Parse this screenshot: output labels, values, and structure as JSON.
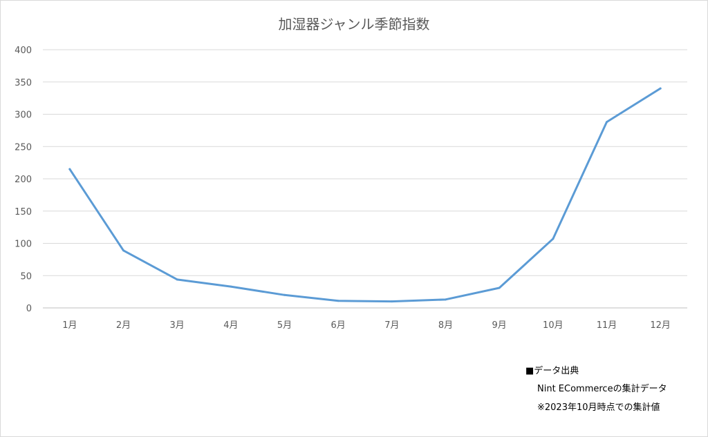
{
  "chart_data": {
    "type": "line",
    "title": "加湿器ジャンル季節指数",
    "xlabel": "",
    "ylabel": "",
    "categories": [
      "1月",
      "2月",
      "3月",
      "4月",
      "5月",
      "6月",
      "7月",
      "8月",
      "9月",
      "10月",
      "11月",
      "12月"
    ],
    "series": [
      {
        "values": [
          215,
          89,
          44,
          33,
          20,
          11,
          10,
          13,
          31,
          107,
          288,
          340
        ],
        "color": "#5b9bd5"
      }
    ],
    "ylim": [
      0,
      400
    ],
    "yticks": [
      0,
      50,
      100,
      150,
      200,
      250,
      300,
      350,
      400
    ],
    "grid": true,
    "legend": "none"
  },
  "notes": {
    "source_heading": "■データ出典",
    "source_line": "Nint ECommerceの集計データ",
    "date_line": "※2023年10月時点での集計値"
  }
}
